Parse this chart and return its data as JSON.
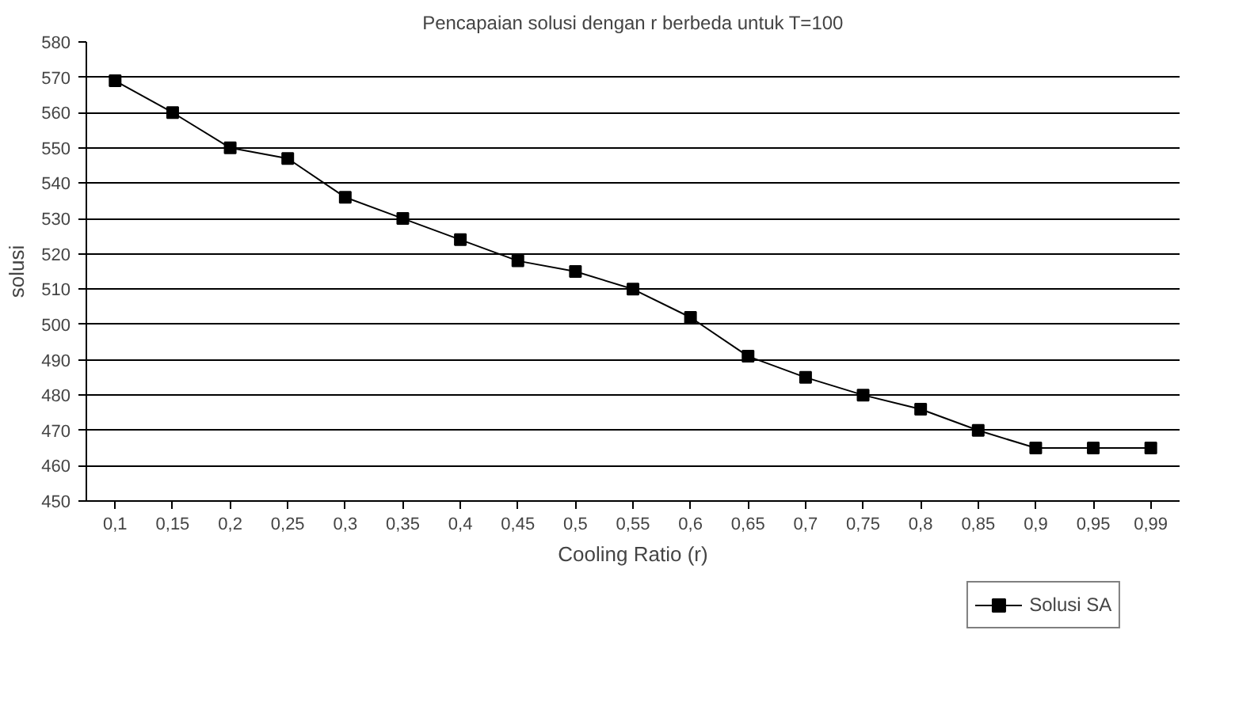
{
  "chart_data": {
    "type": "line",
    "title": "Pencapaian solusi dengan r berbeda untuk T=100",
    "xlabel": "Cooling Ratio (r)",
    "ylabel": "solusi",
    "categories": [
      "0,1",
      "0,15",
      "0,2",
      "0,25",
      "0,3",
      "0,35",
      "0,4",
      "0,45",
      "0,5",
      "0,55",
      "0,6",
      "0,65",
      "0,7",
      "0,75",
      "0,8",
      "0,85",
      "0,9",
      "0,95",
      "0,99"
    ],
    "series": [
      {
        "name": "Solusi SA",
        "color": "#000000",
        "values": [
          569,
          560,
          550,
          547,
          536,
          530,
          524,
          518,
          515,
          510,
          502,
          491,
          485,
          480,
          476,
          470,
          465,
          465,
          465
        ]
      }
    ],
    "ylim": [
      450,
      580
    ],
    "yticks": [
      450,
      460,
      470,
      480,
      490,
      500,
      510,
      520,
      530,
      540,
      550,
      560,
      570,
      580
    ],
    "grid": "y",
    "legend": "bottom right",
    "marker": "square",
    "line_style": "solid"
  }
}
